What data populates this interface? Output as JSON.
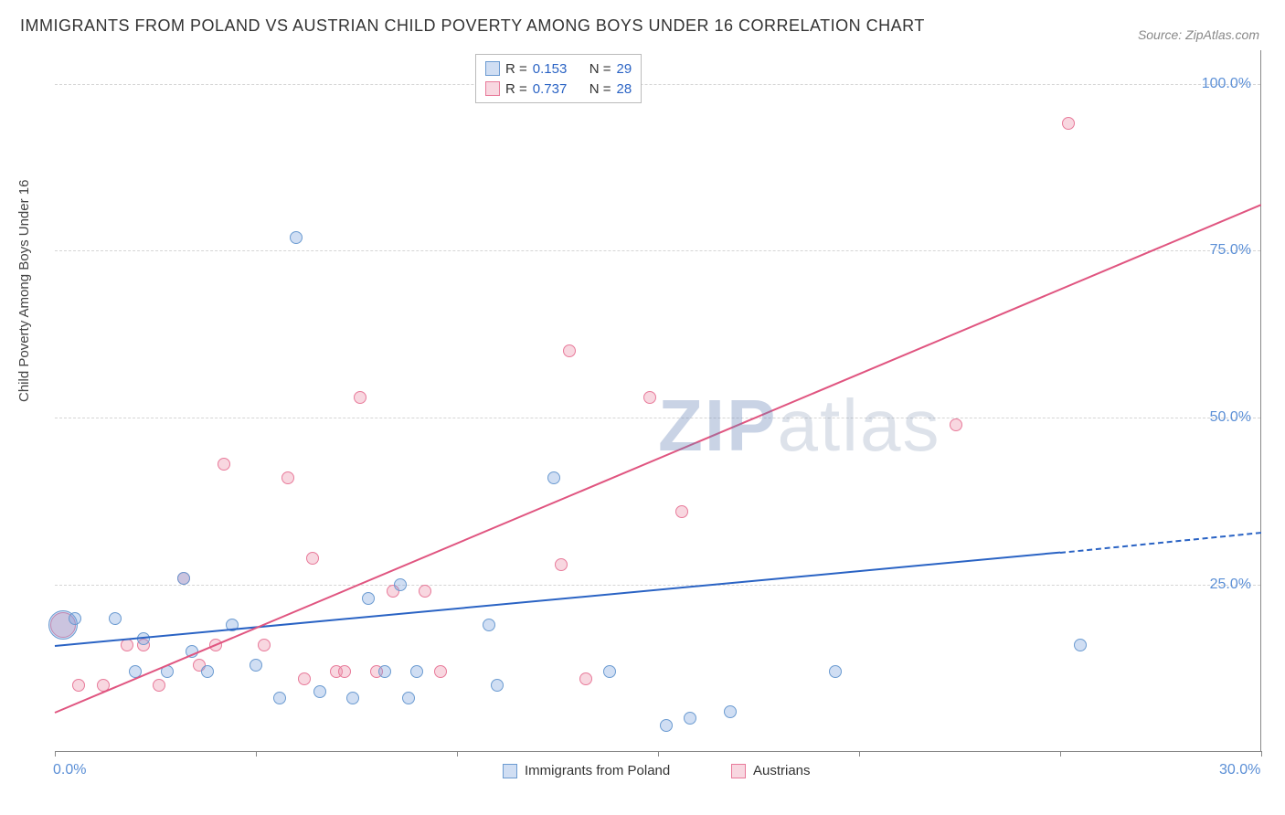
{
  "title": "IMMIGRANTS FROM POLAND VS AUSTRIAN CHILD POVERTY AMONG BOYS UNDER 16 CORRELATION CHART",
  "source": "Source: ZipAtlas.com",
  "ylabel": "Child Poverty Among Boys Under 16",
  "watermark": {
    "bold": "ZIP",
    "rest": "atlas"
  },
  "chart": {
    "type": "scatter",
    "xlim": [
      0,
      30
    ],
    "ylim": [
      0,
      105
    ],
    "xticks": [
      0,
      5,
      10,
      15,
      20,
      25,
      30
    ],
    "xtick_labels": {
      "0": "0.0%",
      "30": "30.0%"
    },
    "yticks": [
      25,
      50,
      75,
      100
    ],
    "ytick_labels": {
      "25": "25.0%",
      "50": "50.0%",
      "75": "75.0%",
      "100": "100.0%"
    },
    "grid_color": "#d5d5d5",
    "axis_color": "#888888",
    "background": "#ffffff",
    "tick_label_color": "#5b8fd6",
    "series": {
      "poland": {
        "label": "Immigrants from Poland",
        "fill": "rgba(120,160,220,0.35)",
        "stroke": "#6b9bd1",
        "r_value": "0.153",
        "n_value": "29",
        "trend": {
          "x1": 0,
          "y1": 16,
          "x2": 25,
          "y2": 30,
          "color": "#2a63c4",
          "dash_after_x": 25,
          "x2_dash": 30,
          "y2_dash": 33
        },
        "points": [
          {
            "x": 0.2,
            "y": 19,
            "r": 16
          },
          {
            "x": 0.5,
            "y": 20,
            "r": 7
          },
          {
            "x": 1.5,
            "y": 20,
            "r": 7
          },
          {
            "x": 2.2,
            "y": 17,
            "r": 7
          },
          {
            "x": 2.0,
            "y": 12,
            "r": 7
          },
          {
            "x": 2.8,
            "y": 12,
            "r": 7
          },
          {
            "x": 3.4,
            "y": 15,
            "r": 7
          },
          {
            "x": 3.8,
            "y": 12,
            "r": 7
          },
          {
            "x": 3.2,
            "y": 26,
            "r": 7
          },
          {
            "x": 4.4,
            "y": 19,
            "r": 7
          },
          {
            "x": 5.0,
            "y": 13,
            "r": 7
          },
          {
            "x": 5.6,
            "y": 8,
            "r": 7
          },
          {
            "x": 6.0,
            "y": 77,
            "r": 7
          },
          {
            "x": 6.6,
            "y": 9,
            "r": 7
          },
          {
            "x": 7.4,
            "y": 8,
            "r": 7
          },
          {
            "x": 7.8,
            "y": 23,
            "r": 7
          },
          {
            "x": 8.2,
            "y": 12,
            "r": 7
          },
          {
            "x": 8.6,
            "y": 25,
            "r": 7
          },
          {
            "x": 8.8,
            "y": 8,
            "r": 7
          },
          {
            "x": 9.0,
            "y": 12,
            "r": 7
          },
          {
            "x": 10.8,
            "y": 19,
            "r": 7
          },
          {
            "x": 11.0,
            "y": 10,
            "r": 7
          },
          {
            "x": 12.4,
            "y": 41,
            "r": 7
          },
          {
            "x": 13.8,
            "y": 12,
            "r": 7
          },
          {
            "x": 15.2,
            "y": 4,
            "r": 7
          },
          {
            "x": 15.8,
            "y": 5,
            "r": 7
          },
          {
            "x": 16.8,
            "y": 6,
            "r": 7
          },
          {
            "x": 19.4,
            "y": 12,
            "r": 7
          },
          {
            "x": 25.5,
            "y": 16,
            "r": 7
          }
        ]
      },
      "austrians": {
        "label": "Austrians",
        "fill": "rgba(235,140,165,0.35)",
        "stroke": "#e87a9a",
        "r_value": "0.737",
        "n_value": "28",
        "trend": {
          "x1": 0,
          "y1": 6,
          "x2": 30,
          "y2": 82,
          "color": "#e05580"
        },
        "points": [
          {
            "x": 0.2,
            "y": 19,
            "r": 14
          },
          {
            "x": 0.6,
            "y": 10,
            "r": 7
          },
          {
            "x": 1.2,
            "y": 10,
            "r": 7
          },
          {
            "x": 1.8,
            "y": 16,
            "r": 7
          },
          {
            "x": 2.2,
            "y": 16,
            "r": 7
          },
          {
            "x": 2.6,
            "y": 10,
            "r": 7
          },
          {
            "x": 3.2,
            "y": 26,
            "r": 7
          },
          {
            "x": 3.6,
            "y": 13,
            "r": 7
          },
          {
            "x": 4.0,
            "y": 16,
            "r": 7
          },
          {
            "x": 4.2,
            "y": 43,
            "r": 7
          },
          {
            "x": 5.2,
            "y": 16,
            "r": 7
          },
          {
            "x": 5.8,
            "y": 41,
            "r": 7
          },
          {
            "x": 6.2,
            "y": 11,
            "r": 7
          },
          {
            "x": 6.4,
            "y": 29,
            "r": 7
          },
          {
            "x": 7.0,
            "y": 12,
            "r": 7
          },
          {
            "x": 7.2,
            "y": 12,
            "r": 7
          },
          {
            "x": 7.6,
            "y": 53,
            "r": 7
          },
          {
            "x": 8.0,
            "y": 12,
            "r": 7
          },
          {
            "x": 8.4,
            "y": 24,
            "r": 7
          },
          {
            "x": 9.2,
            "y": 24,
            "r": 7
          },
          {
            "x": 9.6,
            "y": 12,
            "r": 7
          },
          {
            "x": 12.6,
            "y": 28,
            "r": 7
          },
          {
            "x": 12.8,
            "y": 60,
            "r": 7
          },
          {
            "x": 13.2,
            "y": 11,
            "r": 7
          },
          {
            "x": 14.8,
            "y": 53,
            "r": 7
          },
          {
            "x": 15.6,
            "y": 36,
            "r": 7
          },
          {
            "x": 22.4,
            "y": 49,
            "r": 7
          },
          {
            "x": 25.2,
            "y": 94,
            "r": 7
          }
        ]
      }
    },
    "legend_stats": {
      "r_label": "R =",
      "n_label": "N =",
      "value_color": "#2a63c4"
    }
  }
}
